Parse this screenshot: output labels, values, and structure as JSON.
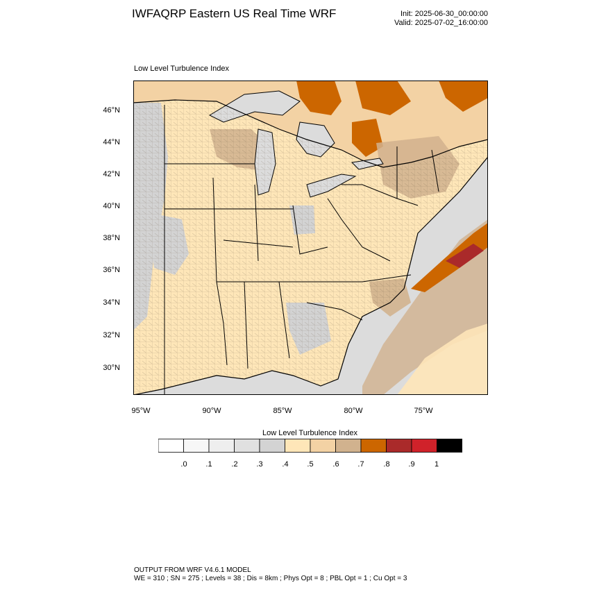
{
  "header": {
    "title": "IWFAQRP Eastern US Real Time WRF",
    "init": "Init: 2025-06-30_00:00:00",
    "valid": "Valid: 2025-07-02_16:00:00"
  },
  "map": {
    "field_label": "Low Level Turbulence Index",
    "lat_labels": [
      "46°N",
      "44°N",
      "42°N",
      "40°N",
      "38°N",
      "36°N",
      "34°N",
      "32°N",
      "30°N"
    ],
    "lon_labels": [
      "95°W",
      "90°W",
      "85°W",
      "80°W",
      "75°W"
    ]
  },
  "colorbar": {
    "title": "Low Level Turbulence Index",
    "colors": [
      "#ffffff",
      "#f7f7f7",
      "#eeeeee",
      "#e0e0e0",
      "#d3d3d3",
      "#fee6b8",
      "#f3d2a4",
      "#d1b28e",
      "#cc6600",
      "#aa2a2a",
      "#d0222a",
      "#000000"
    ],
    "tick_labels": [
      ".0",
      ".1",
      ".2",
      ".3",
      ".4",
      ".5",
      ".6",
      ".7",
      ".8",
      ".9",
      "1"
    ]
  },
  "footer": {
    "line1": "OUTPUT FROM WRF V4.6.1 MODEL",
    "line2": "WE = 310 ; SN = 275 ; Levels = 38 ; Dis = 8km ; Phys Opt = 8 ; PBL Opt = 1 ; Cu Opt = 3"
  }
}
